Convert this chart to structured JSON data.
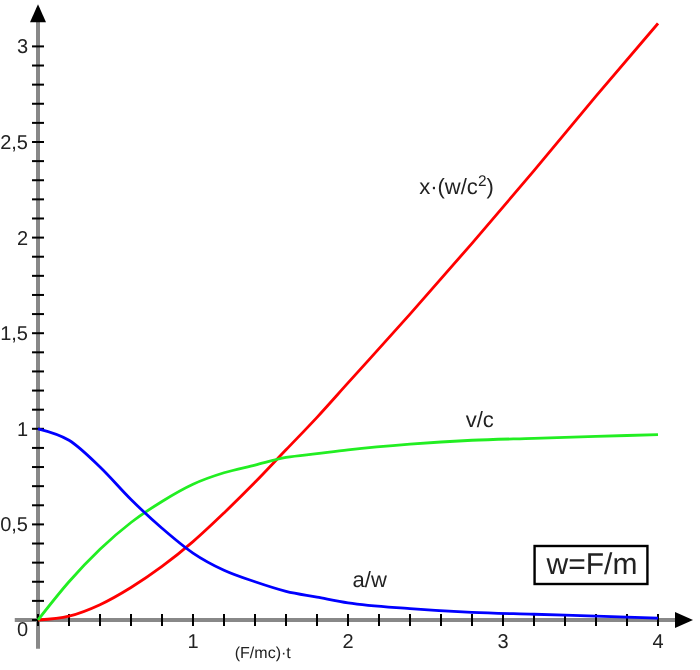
{
  "chart_data": {
    "type": "line",
    "xlabel": "(F/mc)·t",
    "x": [
      0,
      0.2,
      0.4,
      0.6,
      0.8,
      1,
      1.2,
      1.4,
      1.6,
      1.8,
      2,
      2.4,
      2.8,
      3.2,
      3.6,
      4
    ],
    "series": [
      {
        "name": "x·(w/c$^{2}$)",
        "color": "#ff0000",
        "values": [
          0,
          0.02,
          0.08,
          0.17,
          0.28,
          0.41,
          0.56,
          0.72,
          0.89,
          1.06,
          1.24,
          1.6,
          1.97,
          2.35,
          2.74,
          3.12
        ]
      },
      {
        "name": "v/c",
        "color": "#22ee22",
        "values": [
          0,
          0.2,
          0.37,
          0.51,
          0.62,
          0.71,
          0.77,
          0.81,
          0.85,
          0.87,
          0.89,
          0.92,
          0.94,
          0.95,
          0.96,
          0.97
        ]
      },
      {
        "name": "a/w",
        "color": "#0000ff",
        "values": [
          1,
          0.94,
          0.8,
          0.63,
          0.48,
          0.35,
          0.26,
          0.2,
          0.15,
          0.12,
          0.09,
          0.06,
          0.04,
          0.03,
          0.02,
          0.01
        ]
      }
    ],
    "xlim": [
      -0.15,
      4.2
    ],
    "ylim": [
      -0.15,
      3.2
    ],
    "xticks": [
      {
        "value": 0,
        "label": null
      },
      {
        "value": 0.2,
        "label": null
      },
      {
        "value": 0.4,
        "label": null
      },
      {
        "value": 0.6,
        "label": null
      },
      {
        "value": 0.8,
        "label": null
      },
      1,
      {
        "value": 1.2,
        "label": null
      },
      {
        "value": 1.4,
        "label": null
      },
      {
        "value": 1.6,
        "label": null
      },
      {
        "value": 1.8,
        "label": null
      },
      2,
      {
        "value": 2.2,
        "label": null
      },
      {
        "value": 2.4,
        "label": null
      },
      {
        "value": 2.6,
        "label": null
      },
      {
        "value": 2.8,
        "label": null
      },
      3,
      {
        "value": 3.2,
        "label": null
      },
      {
        "value": 3.4,
        "label": null
      },
      {
        "value": 3.6,
        "label": null
      },
      {
        "value": 3.8,
        "label": null
      },
      4
    ],
    "yticks": [
      0,
      {
        "value": 0.1,
        "label": null
      },
      {
        "value": 0.2,
        "label": null
      },
      {
        "value": 0.3,
        "label": null
      },
      {
        "value": 0.4,
        "label": null
      },
      {
        "value": 0.5,
        "label": "0,5"
      },
      {
        "value": 0.6,
        "label": null
      },
      {
        "value": 0.7,
        "label": null
      },
      {
        "value": 0.8,
        "label": null
      },
      {
        "value": 0.9,
        "label": null
      },
      1,
      {
        "value": 1.1,
        "label": null
      },
      {
        "value": 1.2,
        "label": null
      },
      {
        "value": 1.3,
        "label": null
      },
      {
        "value": 1.4,
        "label": null
      },
      {
        "value": 1.5,
        "label": "1,5"
      },
      {
        "value": 1.6,
        "label": null
      },
      {
        "value": 1.7,
        "label": null
      },
      {
        "value": 1.8,
        "label": null
      },
      {
        "value": 1.9,
        "label": null
      },
      2,
      {
        "value": 2.1,
        "label": null
      },
      {
        "value": 2.2,
        "label": null
      },
      {
        "value": 2.3,
        "label": null
      },
      {
        "value": 2.4,
        "label": null
      },
      {
        "value": 2.5,
        "label": "2,5"
      },
      {
        "value": 2.6,
        "label": null
      },
      {
        "value": 2.7,
        "label": null
      },
      {
        "value": 2.8,
        "label": null
      },
      {
        "value": 2.9,
        "label": null
      },
      3
    ],
    "annotations": [
      "w=F/m"
    ],
    "grid": false,
    "legend": false,
    "marker": "none",
    "line_style": "solid"
  }
}
